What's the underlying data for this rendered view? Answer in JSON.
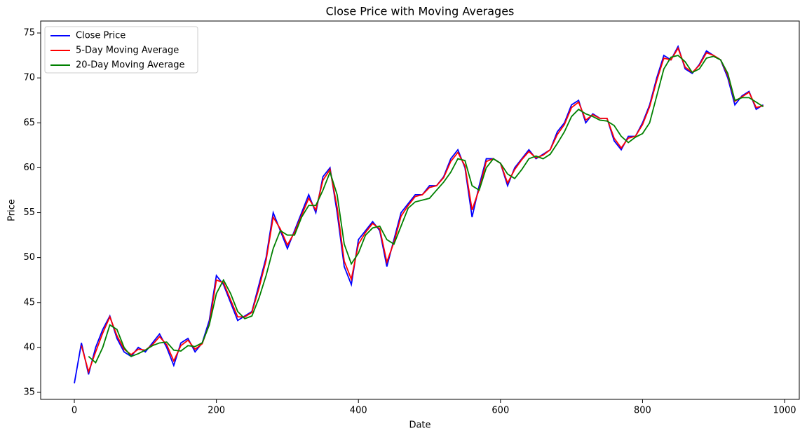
{
  "chart_data": {
    "type": "line",
    "title": "Close Price with Moving Averages",
    "x_label": "Date",
    "y_label": "Price",
    "x": [
      0,
      10,
      20,
      30,
      40,
      50,
      60,
      70,
      80,
      90,
      100,
      110,
      120,
      130,
      140,
      150,
      160,
      170,
      180,
      190,
      200,
      210,
      220,
      230,
      240,
      250,
      260,
      270,
      280,
      290,
      300,
      310,
      320,
      330,
      340,
      350,
      360,
      370,
      380,
      390,
      400,
      410,
      420,
      430,
      440,
      450,
      460,
      470,
      480,
      490,
      500,
      510,
      520,
      530,
      540,
      550,
      560,
      570,
      580,
      590,
      600,
      610,
      620,
      630,
      640,
      650,
      660,
      670,
      680,
      690,
      700,
      710,
      720,
      730,
      740,
      750,
      760,
      770,
      780,
      790,
      800,
      810,
      820,
      830,
      840,
      850,
      860,
      870,
      880,
      890,
      900,
      910,
      920,
      930,
      940,
      950,
      960,
      970
    ],
    "series": [
      {
        "name": "Close Price",
        "color": "#0000ff",
        "values": [
          36,
          40.5,
          37,
          40,
          42,
          43.5,
          41,
          39.5,
          39,
          40,
          39.5,
          40.5,
          41.5,
          40,
          38,
          40.5,
          41,
          39.5,
          40.5,
          43,
          48,
          47,
          45,
          43,
          43.5,
          44,
          47,
          50,
          55,
          53,
          51,
          53,
          55,
          57,
          55,
          59,
          60,
          55,
          49,
          47,
          52,
          53,
          54,
          53,
          49,
          52,
          55,
          56,
          57,
          57,
          58,
          58,
          59,
          61,
          62,
          60,
          54.5,
          58,
          61,
          61,
          60.5,
          58,
          60,
          61,
          62,
          61,
          61.5,
          62,
          64,
          65,
          67,
          67.5,
          65,
          66,
          65.5,
          65.5,
          63,
          62,
          63.5,
          63.5,
          65,
          67,
          70,
          72.5,
          72,
          73.5,
          71,
          70.5,
          71.5,
          73,
          72.5,
          72,
          70,
          67,
          68,
          68.5,
          66.5,
          67
        ]
      },
      {
        "name": "5-Day Moving Average",
        "color": "#ff0000",
        "values": [
          null,
          40.2,
          37.3,
          39.5,
          41.6,
          43.4,
          41.3,
          39.8,
          39.2,
          39.8,
          39.7,
          40.3,
          41.2,
          40.3,
          38.5,
          40.2,
          40.8,
          39.8,
          40.4,
          42.6,
          47.5,
          47.2,
          45.3,
          43.4,
          43.4,
          43.9,
          46.6,
          49.7,
          54.5,
          53.2,
          51.4,
          52.8,
          54.7,
          56.6,
          55.3,
          58.6,
          59.8,
          55.6,
          49.6,
          47.6,
          51.5,
          52.8,
          53.8,
          53.2,
          49.5,
          51.7,
          54.6,
          55.8,
          56.8,
          57,
          57.8,
          58,
          58.9,
          60.7,
          61.7,
          60.2,
          55.3,
          57.6,
          60.7,
          61,
          60.5,
          58.3,
          59.8,
          60.9,
          61.8,
          61.1,
          61.4,
          62,
          63.7,
          64.8,
          66.7,
          67.3,
          65.3,
          65.9,
          65.5,
          65.5,
          63.3,
          62.2,
          63.3,
          63.5,
          64.8,
          66.8,
          69.7,
          72.2,
          72,
          73.3,
          71.2,
          70.6,
          71.4,
          72.8,
          72.5,
          72,
          70.3,
          67.4,
          67.9,
          68.4,
          66.7,
          66.9
        ]
      },
      {
        "name": "20-Day Moving Average",
        "color": "#008000",
        "values": [
          null,
          null,
          39,
          38.3,
          40,
          42.5,
          42,
          40,
          39,
          39.3,
          39.7,
          40.2,
          40.5,
          40.6,
          39.7,
          39.6,
          40.2,
          40.1,
          40.5,
          42.5,
          46,
          47.5,
          46,
          44,
          43.2,
          43.5,
          45.5,
          48,
          51,
          53,
          52.5,
          52.5,
          54.5,
          55.8,
          55.8,
          57.5,
          59.5,
          57,
          51.5,
          49.3,
          50.5,
          52.5,
          53.3,
          53.5,
          52,
          51.5,
          53.5,
          55.5,
          56.2,
          56.4,
          56.6,
          57.5,
          58.4,
          59.5,
          61,
          60.8,
          58,
          57.5,
          60,
          61,
          60.5,
          59.3,
          58.8,
          59.8,
          61,
          61.3,
          61,
          61.5,
          62.7,
          64,
          65.7,
          66.5,
          66,
          65.7,
          65.3,
          65.2,
          64.7,
          63.5,
          62.8,
          63.4,
          63.8,
          65,
          68,
          71,
          72.3,
          72.5,
          71.8,
          70.6,
          71,
          72.2,
          72.4,
          72,
          70.5,
          67.5,
          67.8,
          67.8,
          67.3,
          66.8
        ]
      }
    ],
    "xlim": [
      -47.4,
      1020.7
    ],
    "ylim": [
      34.22,
      76.33
    ],
    "xticks": [
      0,
      200,
      400,
      600,
      800,
      1000
    ],
    "yticks": [
      35,
      40,
      45,
      50,
      55,
      60,
      65,
      70,
      75
    ],
    "legend": "upper-left"
  }
}
